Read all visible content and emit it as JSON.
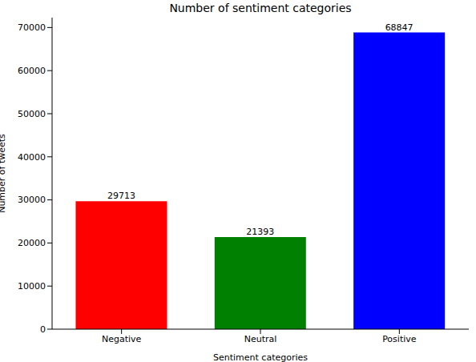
{
  "chart_data": {
    "type": "bar",
    "title": "Number of sentiment categories",
    "x_label": "Sentiment categories",
    "y_label": "Number of tweets",
    "categories": [
      "Negative",
      "Neutral",
      "Positive"
    ],
    "values": [
      29713,
      21393,
      68847
    ],
    "colors": [
      "#ff0000",
      "#008000",
      "#0000ff"
    ],
    "ylim": [
      0,
      72300
    ],
    "yticks": [
      0,
      10000,
      20000,
      30000,
      40000,
      50000,
      60000,
      70000
    ],
    "grid": false,
    "data_labels": true
  }
}
